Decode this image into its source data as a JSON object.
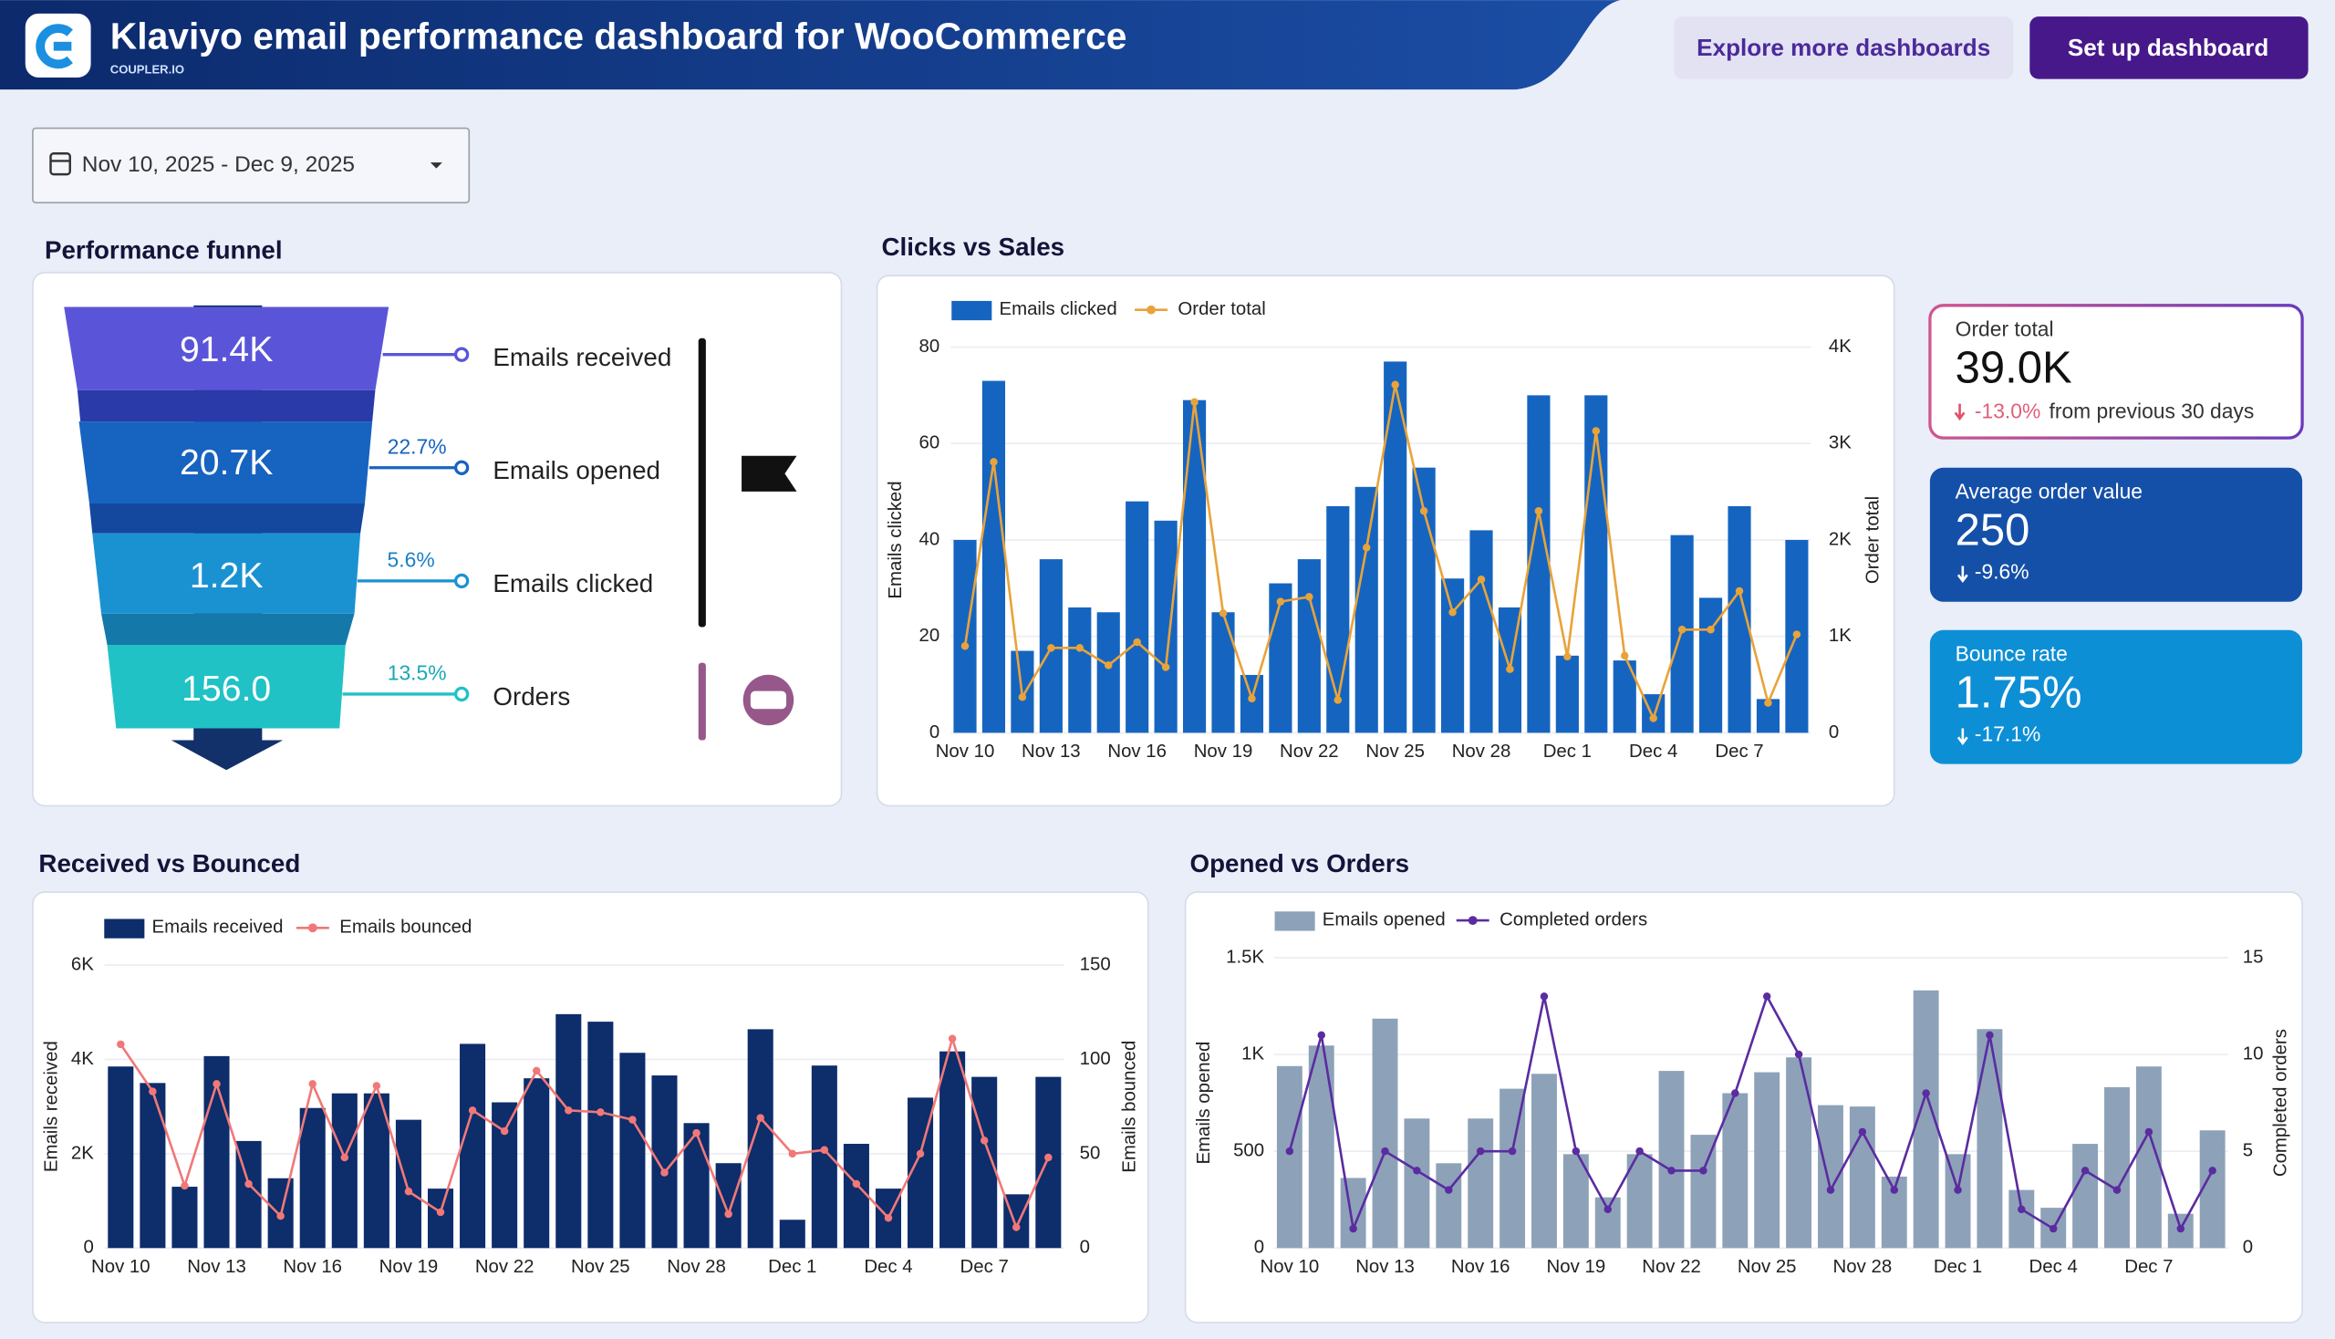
{
  "header": {
    "title": "Klaviyo email performance dashboard for WooCommerce",
    "brand": "COUPLER.IO",
    "buttons": [
      "Explore more dashboards",
      "Set up dashboard"
    ]
  },
  "date_range": "Nov 10, 2025 - Dec 9, 2025",
  "funnel": {
    "title": "Performance funnel",
    "stages": [
      {
        "value": "91.4K",
        "label": "Emails received"
      },
      {
        "value": "20.7K",
        "label": "Emails opened",
        "rate": "22.7%"
      },
      {
        "value": "1.2K",
        "label": "Emails clicked",
        "rate": "5.6%"
      },
      {
        "value": "156.0",
        "label": "Orders",
        "rate": "13.5%"
      }
    ]
  },
  "kpis": [
    {
      "label": "Order total",
      "value": "39.0K",
      "change": "-13.0%",
      "note": "from previous 30 days"
    },
    {
      "label": "Average order value",
      "value": "250",
      "change": "-9.6%"
    },
    {
      "label": "Bounce rate",
      "value": "1.75%",
      "change": "-17.1%"
    }
  ],
  "chart_data": [
    {
      "type": "combo",
      "title": "Clicks vs Sales",
      "y_label": "Emails clicked",
      "y2_label": "Order total",
      "grid": true,
      "categories": [
        "Nov 10",
        null,
        null,
        "Nov 13",
        null,
        null,
        "Nov 16",
        null,
        null,
        "Nov 19",
        null,
        null,
        "Nov 22",
        null,
        null,
        "Nov 25",
        null,
        null,
        "Nov 28",
        null,
        null,
        "Dec 1",
        null,
        null,
        "Dec 4",
        null,
        null,
        "Dec 7",
        null,
        null
      ],
      "ylim": [
        0,
        80
      ],
      "yticks": [
        0,
        20,
        40,
        60,
        80
      ],
      "y2lim": [
        0,
        4000
      ],
      "y2ticks": [
        0,
        {
          "value": 1000,
          "label": "1K"
        },
        {
          "value": 2000,
          "label": "2K"
        },
        {
          "value": 3000,
          "label": "3K"
        },
        {
          "value": 4000,
          "label": "4K"
        }
      ],
      "series": [
        {
          "name": "Emails clicked",
          "type": "bar",
          "color": "#1565c0",
          "values": [
            40,
            73,
            17,
            36,
            26,
            25,
            48,
            44,
            69,
            25,
            12,
            31,
            36,
            47,
            51,
            77,
            55,
            32,
            42,
            26,
            70,
            16,
            70,
            15,
            8,
            41,
            28,
            47,
            7,
            40
          ]
        },
        {
          "name": "Order total",
          "type": "line",
          "axis": "y2",
          "color": "#e8a33a",
          "values": [
            900,
            2810,
            370,
            880,
            880,
            700,
            940,
            680,
            3430,
            1240,
            355,
            1360,
            1410,
            340,
            1920,
            3610,
            2300,
            1250,
            1590,
            660,
            2300,
            790,
            3130,
            800,
            150,
            1070,
            1070,
            1470,
            310,
            1020
          ]
        }
      ]
    },
    {
      "type": "combo",
      "title": "Received vs Bounced",
      "y_label": "Emails received",
      "y2_label": "Emails bounced",
      "grid": true,
      "categories": [
        "Nov 10",
        null,
        null,
        "Nov 13",
        null,
        null,
        "Nov 16",
        null,
        null,
        "Nov 19",
        null,
        null,
        "Nov 22",
        null,
        null,
        "Nov 25",
        null,
        null,
        "Nov 28",
        null,
        null,
        "Dec 1",
        null,
        null,
        "Dec 4",
        null,
        null,
        "Dec 7",
        null,
        null
      ],
      "ylim": [
        0,
        6000
      ],
      "yticks": [
        0,
        {
          "value": 2000,
          "label": "2K"
        },
        {
          "value": 4000,
          "label": "4K"
        },
        {
          "value": 6000,
          "label": "6K"
        }
      ],
      "y2lim": [
        0,
        150
      ],
      "y2ticks": [
        0,
        50,
        100,
        150
      ],
      "series": [
        {
          "name": "Emails received",
          "type": "bar",
          "color": "#0d2d6b",
          "values": [
            3850,
            3500,
            1300,
            4070,
            2270,
            1480,
            2970,
            3280,
            3280,
            2720,
            1260,
            4330,
            3090,
            3600,
            4960,
            4800,
            4140,
            3660,
            2650,
            1800,
            4640,
            600,
            3870,
            2210,
            1260,
            3190,
            4170,
            3630,
            1140,
            3630
          ]
        },
        {
          "name": "Emails bounced",
          "type": "line",
          "axis": "y2",
          "color": "#f07878",
          "values": [
            108,
            83,
            33,
            87,
            34,
            17,
            87,
            48,
            86,
            30,
            19,
            73,
            62,
            94,
            73,
            72,
            68,
            40,
            61,
            18,
            69,
            50,
            52,
            34,
            16,
            50,
            111,
            57,
            11,
            48
          ]
        }
      ]
    },
    {
      "type": "combo",
      "title": "Opened vs Orders",
      "y_label": "Emails opened",
      "y2_label": "Completed orders",
      "grid": true,
      "categories": [
        "Nov 10",
        null,
        null,
        "Nov 13",
        null,
        null,
        "Nov 16",
        null,
        null,
        "Nov 19",
        null,
        null,
        "Nov 22",
        null,
        null,
        "Nov 25",
        null,
        null,
        "Nov 28",
        null,
        null,
        "Dec 1",
        null,
        null,
        "Dec 4",
        null,
        null,
        "Dec 7",
        null,
        null
      ],
      "ylim": [
        0,
        1500
      ],
      "yticks": [
        0,
        500,
        {
          "value": 1000,
          "label": "1K"
        },
        {
          "value": 1500,
          "label": "1.5K"
        }
      ],
      "y2lim": [
        0,
        15
      ],
      "y2ticks": [
        0,
        5,
        10,
        15
      ],
      "series": [
        {
          "name": "Emails opened",
          "type": "bar",
          "color": "#8da2b8",
          "values": [
            940,
            1046,
            362,
            1185,
            669,
            438,
            669,
            823,
            900,
            485,
            262,
            485,
            915,
            585,
            800,
            908,
            985,
            738,
            731,
            369,
            1331,
            485,
            1131,
            300,
            208,
            538,
            831,
            938,
            177,
            608
          ]
        },
        {
          "name": "Completed orders",
          "type": "line",
          "axis": "y2",
          "color": "#5a2ca0",
          "values": [
            5,
            11,
            1,
            5,
            4,
            3,
            5,
            5,
            13,
            5,
            2,
            5,
            4,
            4,
            8,
            13,
            10,
            3,
            6,
            3,
            8,
            3,
            11,
            2,
            1,
            4,
            3,
            6,
            1,
            4
          ]
        }
      ]
    }
  ]
}
